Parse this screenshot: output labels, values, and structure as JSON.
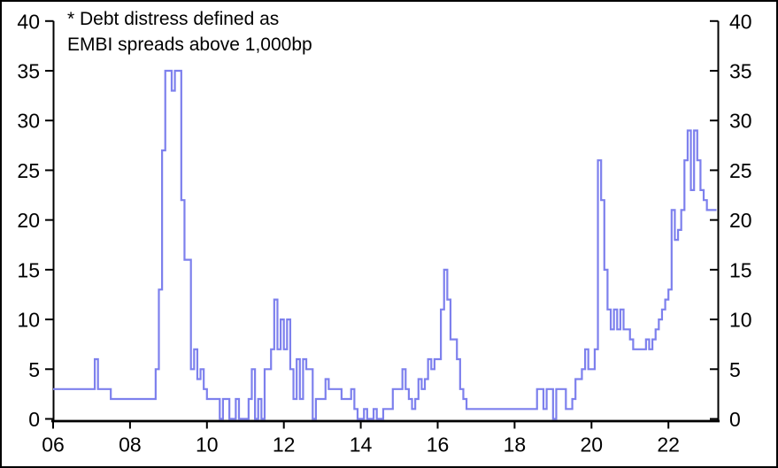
{
  "annotation": {
    "line1": "* Debt distress defined as",
    "line2": "EMBI spreads above 1,000bp"
  },
  "colors": {
    "line": "#7d80ed",
    "axis": "#000000",
    "background": "#ffffff"
  },
  "chart_data": {
    "type": "line",
    "step": true,
    "title": "",
    "annotation": "* Debt distress defined as EMBI spreads above 1,000bp",
    "x_start": {
      "year": 2006,
      "month": 1
    },
    "x_tick_labels": [
      "06",
      "08",
      "10",
      "12",
      "14",
      "16",
      "18",
      "20",
      "22"
    ],
    "x_tick_years": [
      2006,
      2008,
      2010,
      2012,
      2014,
      2016,
      2018,
      2020,
      2022
    ],
    "y_ticks": [
      0,
      5,
      10,
      15,
      20,
      25,
      30,
      35,
      40
    ],
    "ylim": [
      0,
      40
    ],
    "y_axis_sides": [
      "left",
      "right"
    ],
    "grid": false,
    "legend": "none",
    "line_color": "#7d80ed",
    "monthly_values_by_year": {
      "2006": [
        3,
        3,
        3,
        3,
        3,
        3,
        3,
        3,
        3,
        3,
        3,
        3
      ],
      "2007": [
        3,
        6,
        3,
        3,
        3,
        3,
        2,
        2,
        2,
        2,
        2,
        2
      ],
      "2008": [
        2,
        2,
        2,
        2,
        2,
        2,
        2,
        2,
        5,
        13,
        27,
        35
      ],
      "2009": [
        35,
        33,
        35,
        35,
        22,
        16,
        16,
        5,
        7,
        4,
        5,
        3
      ],
      "2010": [
        2,
        2,
        2,
        2,
        0,
        2,
        2,
        0,
        0,
        2,
        0,
        0
      ],
      "2011": [
        0,
        2,
        5,
        0,
        2,
        0,
        5,
        5,
        7,
        12,
        7,
        10
      ],
      "2012": [
        7,
        10,
        5,
        2,
        6,
        2,
        6,
        5,
        5,
        0,
        2,
        2
      ],
      "2013": [
        2,
        4,
        3,
        3,
        3,
        3,
        2,
        2,
        2,
        3,
        1,
        0
      ],
      "2014": [
        0,
        1,
        0,
        0,
        1,
        0,
        0,
        1,
        1,
        1,
        3,
        3
      ],
      "2015": [
        3,
        5,
        3,
        2,
        1,
        2,
        4,
        3,
        4,
        6,
        5,
        6
      ],
      "2016": [
        6,
        11,
        15,
        12,
        8,
        8,
        6,
        3,
        2,
        1,
        1,
        1
      ],
      "2017": [
        1,
        1,
        1,
        1,
        1,
        1,
        1,
        1,
        1,
        1,
        1,
        1
      ],
      "2018": [
        1,
        1,
        1,
        1,
        1,
        1,
        1,
        3,
        3,
        1,
        3,
        3
      ],
      "2019": [
        0,
        3,
        3,
        3,
        1,
        1,
        2,
        4,
        4,
        5,
        7,
        5
      ],
      "2020": [
        5,
        7,
        26,
        22,
        15,
        11,
        9,
        11,
        9,
        11,
        9,
        9
      ],
      "2021": [
        8,
        7,
        7,
        7,
        7,
        8,
        7,
        8,
        9,
        10,
        11,
        12
      ],
      "2022": [
        13,
        21,
        18,
        19,
        21,
        26,
        29,
        23,
        29,
        26,
        23,
        22
      ],
      "2023": [
        21,
        21,
        21
      ]
    }
  }
}
